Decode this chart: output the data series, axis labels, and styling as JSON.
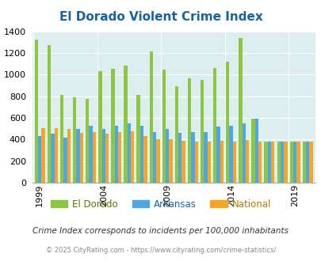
{
  "title": "El Dorado Violent Crime Index",
  "subtitle": "Crime Index corresponds to incidents per 100,000 inhabitants",
  "footer": "© 2025 CityRating.com - https://www.cityrating.com/crime-statistics/",
  "years": [
    1999,
    2000,
    2001,
    2002,
    2003,
    2004,
    2005,
    2006,
    2007,
    2008,
    2009,
    2010,
    2011,
    2012,
    2013,
    2014,
    2015,
    2016,
    2017,
    2018,
    2019,
    2020
  ],
  "el_dorado": [
    1325,
    1270,
    810,
    790,
    775,
    1030,
    1055,
    1080,
    810,
    1215,
    1045,
    895,
    965,
    950,
    1060,
    1120,
    1340,
    590,
    380,
    380,
    380,
    380
  ],
  "arkansas": [
    435,
    450,
    420,
    500,
    530,
    500,
    530,
    550,
    530,
    470,
    500,
    460,
    465,
    470,
    520,
    530,
    545,
    595,
    380,
    380,
    380,
    380
  ],
  "national": [
    505,
    505,
    495,
    460,
    470,
    455,
    465,
    475,
    430,
    405,
    400,
    390,
    380,
    380,
    385,
    380,
    395,
    380,
    380,
    380,
    380,
    380
  ],
  "color_eldorado": "#8dc63f",
  "color_arkansas": "#4da6e8",
  "color_national": "#f5a623",
  "bg_color": "#ddeef0",
  "ylim_max": 1400,
  "yticks": [
    0,
    200,
    400,
    600,
    800,
    1000,
    1200,
    1400
  ],
  "xtick_years": [
    1999,
    2004,
    2009,
    2014,
    2019
  ],
  "title_color": "#1464a0",
  "legend_labels": [
    "El Dorado",
    "Arkansas",
    "National"
  ],
  "legend_label_colors": [
    "#5a7a00",
    "#1464a0",
    "#b87800"
  ],
  "subtitle_color": "#333333",
  "footer_color": "#888888"
}
